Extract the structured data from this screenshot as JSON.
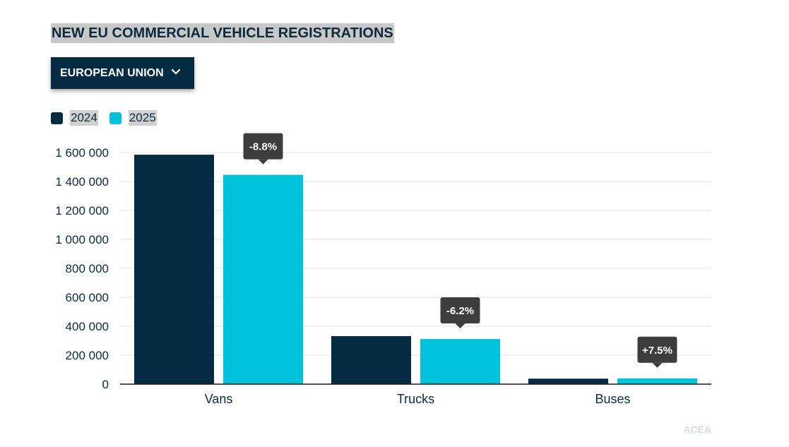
{
  "title": "NEW EU COMMERCIAL VEHICLE REGISTRATIONS",
  "dropdown": {
    "label": "EUROPEAN UNION",
    "icon": "chevron-down-icon"
  },
  "legend": [
    {
      "label": "2024",
      "color": "#042b41"
    },
    {
      "label": "2025",
      "color": "#00c3db"
    }
  ],
  "source": "ACEA",
  "chart_data": {
    "type": "bar",
    "categories": [
      "Vans",
      "Trucks",
      "Buses"
    ],
    "series": [
      {
        "name": "2024",
        "values": [
          1585000,
          332000,
          38000
        ],
        "color": "#042b41"
      },
      {
        "name": "2025",
        "values": [
          1446000,
          312000,
          40000
        ],
        "color": "#00c3db"
      }
    ],
    "change_labels": [
      "-8.8%",
      "-6.2%",
      "+7.5%"
    ],
    "ylim": [
      0,
      1600000
    ],
    "yticks": [
      0,
      200000,
      400000,
      600000,
      800000,
      1000000,
      1200000,
      1400000,
      1600000
    ],
    "ytick_labels": [
      "0",
      "200 000",
      "400 000",
      "600 000",
      "800 000",
      "1 000 000",
      "1 200 000",
      "1 400 000",
      "1 600 000"
    ],
    "xlabel": "",
    "ylabel": "",
    "grid": true,
    "legend_position": "top-left"
  }
}
